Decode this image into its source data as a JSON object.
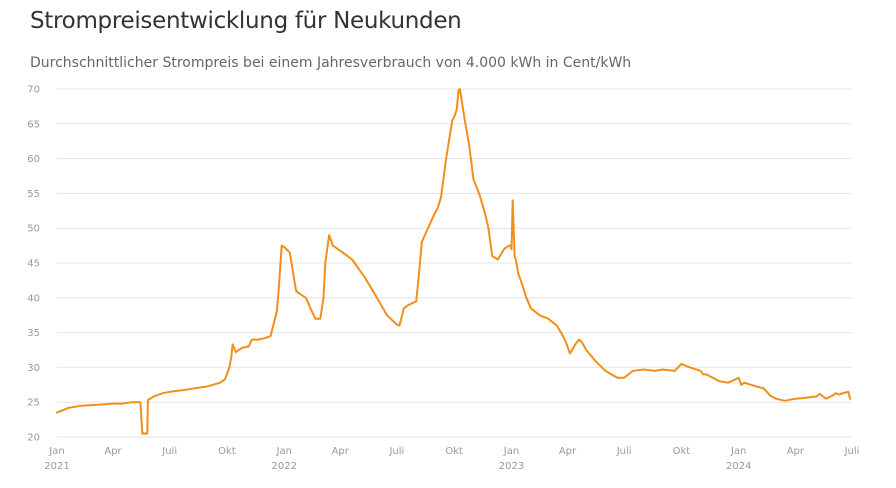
{
  "header": {
    "title": "Strompreisentwicklung für Neukunden",
    "subtitle": "Durchschnittlicher Strompreis bei einem Jahresverbrauch von 4.000 kWh in Cent/kWh"
  },
  "colors": {
    "line": "#f28e1c",
    "grid": "#e6e6e6",
    "tick_text": "#999999"
  },
  "chart_data": {
    "type": "line",
    "title": "Strompreisentwicklung für Neukunden",
    "subtitle": "Durchschnittlicher Strompreis bei einem Jahresverbrauch von 4.000 kWh in Cent/kWh",
    "xlabel": "",
    "ylabel": "",
    "ylim": [
      20,
      70
    ],
    "yticks": [
      20,
      25,
      30,
      35,
      40,
      45,
      50,
      55,
      60,
      65,
      70
    ],
    "xlim": [
      "2021-01-01",
      "2024-07-01"
    ],
    "xticks": [
      {
        "date": "2021-01-01",
        "label": "Jan",
        "year": "2021"
      },
      {
        "date": "2021-04-01",
        "label": "Apr",
        "year": ""
      },
      {
        "date": "2021-07-01",
        "label": "Juli",
        "year": ""
      },
      {
        "date": "2021-10-01",
        "label": "Okt",
        "year": ""
      },
      {
        "date": "2022-01-01",
        "label": "Jan",
        "year": "2022"
      },
      {
        "date": "2022-04-01",
        "label": "Apr",
        "year": ""
      },
      {
        "date": "2022-07-01",
        "label": "Juli",
        "year": ""
      },
      {
        "date": "2022-10-01",
        "label": "Okt",
        "year": ""
      },
      {
        "date": "2023-01-01",
        "label": "Jan",
        "year": "2023"
      },
      {
        "date": "2023-04-01",
        "label": "Apr",
        "year": ""
      },
      {
        "date": "2023-07-01",
        "label": "Juli",
        "year": ""
      },
      {
        "date": "2023-10-01",
        "label": "Okt",
        "year": ""
      },
      {
        "date": "2024-01-01",
        "label": "Jan",
        "year": "2024"
      },
      {
        "date": "2024-04-01",
        "label": "Apr",
        "year": ""
      },
      {
        "date": "2024-07-01",
        "label": "Juli",
        "year": ""
      }
    ],
    "grid": true,
    "legend": "none",
    "series": [
      {
        "x": [
          "2021-01-01",
          "2021-01-20",
          "2021-02-10",
          "2021-03-01",
          "2021-03-20",
          "2021-04-01",
          "2021-04-15",
          "2021-05-01",
          "2021-05-15",
          "2021-05-18",
          "2021-05-26",
          "2021-05-27",
          "2021-06-05",
          "2021-06-20",
          "2021-07-01",
          "2021-07-20",
          "2021-08-10",
          "2021-09-01",
          "2021-09-20",
          "2021-09-28",
          "2021-10-05",
          "2021-10-08",
          "2021-10-10",
          "2021-10-15",
          "2021-10-25",
          "2021-11-05",
          "2021-11-10",
          "2021-11-20",
          "2021-12-01",
          "2021-12-10",
          "2021-12-20",
          "2021-12-23",
          "2021-12-28",
          "2022-01-01",
          "2022-01-10",
          "2022-01-20",
          "2022-01-27",
          "2022-02-05",
          "2022-02-12",
          "2022-02-20",
          "2022-02-28",
          "2022-03-05",
          "2022-03-08",
          "2022-03-14",
          "2022-03-20",
          "2022-03-28",
          "2022-04-05",
          "2022-04-20",
          "2022-05-10",
          "2022-05-30",
          "2022-06-15",
          "2022-06-30",
          "2022-07-05",
          "2022-07-08",
          "2022-07-12",
          "2022-07-20",
          "2022-08-01",
          "2022-08-05",
          "2022-08-10",
          "2022-08-20",
          "2022-08-30",
          "2022-09-05",
          "2022-09-10",
          "2022-09-18",
          "2022-09-28",
          "2022-10-01",
          "2022-10-05",
          "2022-10-08",
          "2022-10-10",
          "2022-10-12",
          "2022-10-18",
          "2022-10-25",
          "2022-11-01",
          "2022-11-10",
          "2022-11-20",
          "2022-11-25",
          "2022-12-01",
          "2022-12-10",
          "2022-12-20",
          "2022-12-28",
          "2022-12-30",
          "2023-01-01",
          "2023-01-03",
          "2023-01-06",
          "2023-01-08",
          "2023-01-12",
          "2023-01-18",
          "2023-01-25",
          "2023-02-01",
          "2023-02-15",
          "2023-03-01",
          "2023-03-15",
          "2023-03-25",
          "2023-03-30",
          "2023-04-05",
          "2023-04-15",
          "2023-04-20",
          "2023-04-25",
          "2023-05-01",
          "2023-05-15",
          "2023-06-01",
          "2023-06-20",
          "2023-07-01",
          "2023-07-15",
          "2023-08-01",
          "2023-08-20",
          "2023-09-01",
          "2023-09-20",
          "2023-10-01",
          "2023-10-15",
          "2023-11-01",
          "2023-11-05",
          "2023-11-10",
          "2023-12-01",
          "2023-12-15",
          "2024-01-01",
          "2024-01-05",
          "2024-01-10",
          "2024-02-01",
          "2024-02-10",
          "2024-02-20",
          "2024-03-01",
          "2024-03-15",
          "2024-04-01",
          "2024-04-15",
          "2024-05-01",
          "2024-05-05",
          "2024-05-10",
          "2024-05-20",
          "2024-06-01",
          "2024-06-05",
          "2024-06-10",
          "2024-06-20",
          "2024-06-25",
          "2024-06-28"
        ],
        "y": [
          23.5,
          24.2,
          24.5,
          24.6,
          24.7,
          24.8,
          24.8,
          25.0,
          25.0,
          20.5,
          20.5,
          25.3,
          25.8,
          26.3,
          26.5,
          26.7,
          27.0,
          27.3,
          27.8,
          28.3,
          30.0,
          31.5,
          33.3,
          32.2,
          32.8,
          33.0,
          34.0,
          34.0,
          34.2,
          34.5,
          38.0,
          41.0,
          47.5,
          47.3,
          46.5,
          41.0,
          40.5,
          40.0,
          38.5,
          37.0,
          37.0,
          40.0,
          45.0,
          49.0,
          47.5,
          47.0,
          46.5,
          45.5,
          43.0,
          40.0,
          37.5,
          36.2,
          36.0,
          37.0,
          38.5,
          39.0,
          39.5,
          43.0,
          48.0,
          50.0,
          52.0,
          53.0,
          54.5,
          60.0,
          65.5,
          66.0,
          67.0,
          69.8,
          70.0,
          69.0,
          65.5,
          62.0,
          57.0,
          55.0,
          52.0,
          50.0,
          46.0,
          45.5,
          47.0,
          47.5,
          47.5,
          47.0,
          54.0,
          46.0,
          45.5,
          43.5,
          42.0,
          40.0,
          38.5,
          37.5,
          37.0,
          36.0,
          34.5,
          33.5,
          32.0,
          33.5,
          34.0,
          33.5,
          32.5,
          31.0,
          29.5,
          28.5,
          28.5,
          29.5,
          29.7,
          29.5,
          29.7,
          29.5,
          30.5,
          30.0,
          29.5,
          29.0,
          29.0,
          28.0,
          27.8,
          28.5,
          27.5,
          27.8,
          27.2,
          27.0,
          26.0,
          25.5,
          25.2,
          25.5,
          25.6,
          25.8,
          25.8,
          26.2,
          25.5,
          26.0,
          26.3,
          26.1,
          26.4,
          26.5,
          25.5
        ]
      }
    ]
  }
}
